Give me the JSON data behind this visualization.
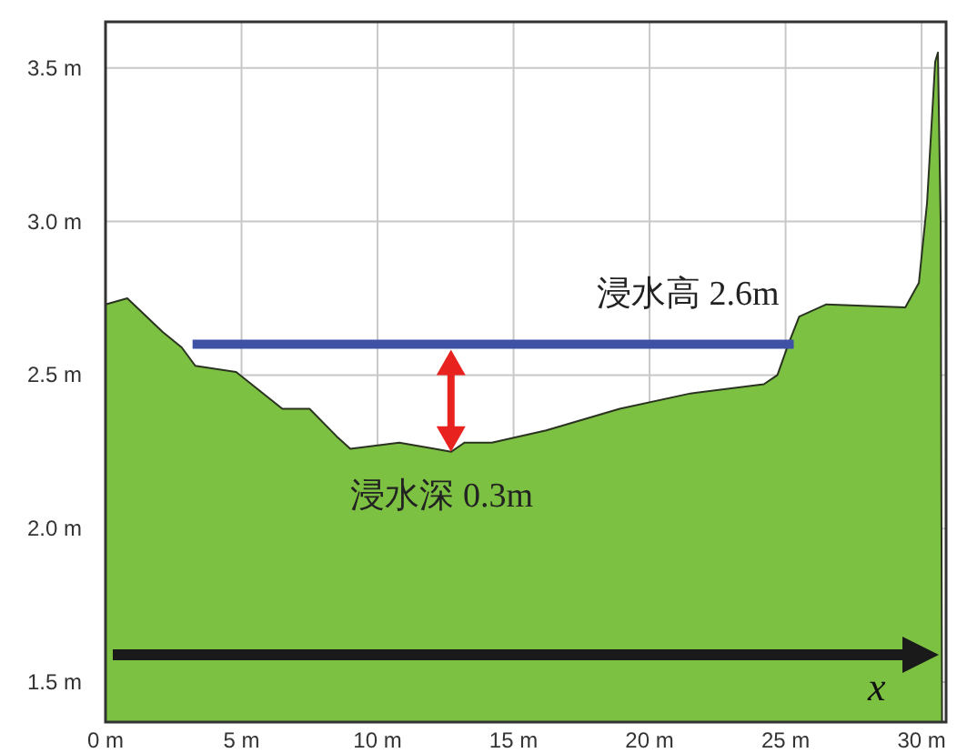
{
  "chart_data": {
    "type": "area",
    "xlabel": "x",
    "grid": true,
    "xlim": [
      0,
      30.9
    ],
    "ylim": [
      1.37,
      3.65
    ],
    "xticks": [
      {
        "value": 0,
        "label": "0 m"
      },
      {
        "value": 5,
        "label": "5 m"
      },
      {
        "value": 10,
        "label": "10 m"
      },
      {
        "value": 15,
        "label": "15 m"
      },
      {
        "value": 20,
        "label": "20 m"
      },
      {
        "value": 25,
        "label": "25 m"
      },
      {
        "value": 30,
        "label": "30 m"
      }
    ],
    "yticks": [
      {
        "value": 1.5,
        "label": "1.5 m"
      },
      {
        "value": 2,
        "label": "2.0 m"
      },
      {
        "value": 2.5,
        "label": "2.5 m"
      },
      {
        "value": 3,
        "label": "3.0 m"
      },
      {
        "value": 3.5,
        "label": "3.5 m"
      }
    ],
    "series": [
      {
        "color": "#7dc142",
        "x": [
          0,
          0.8,
          2.1,
          2.8,
          3.3,
          4.8,
          6.5,
          7.5,
          8.5,
          9.0,
          10.8,
          12.1,
          12.7,
          13.2,
          14.2,
          16.2,
          18.9,
          21.5,
          24.2,
          24.7,
          25.1,
          25.5,
          26.5,
          29.4,
          29.9,
          30.2,
          30.5,
          30.6,
          30.7,
          30.75
        ],
        "values": [
          2.73,
          2.75,
          2.64,
          2.59,
          2.53,
          2.51,
          2.39,
          2.39,
          2.3,
          2.26,
          2.28,
          2.26,
          2.25,
          2.28,
          2.28,
          2.32,
          2.39,
          2.44,
          2.47,
          2.5,
          2.6,
          2.69,
          2.73,
          2.72,
          2.8,
          3.06,
          3.52,
          3.55,
          3.0,
          1.4
        ]
      },
      {
        "type": "line",
        "name": "浸水高 2.6m",
        "color": "#3f51a5",
        "x": [
          3.2,
          25.3
        ],
        "values": [
          2.6,
          2.6
        ]
      }
    ],
    "annotations": [
      {
        "text": "浸水深 0.3m",
        "x": 12.7,
        "y": 2.25
      }
    ]
  }
}
